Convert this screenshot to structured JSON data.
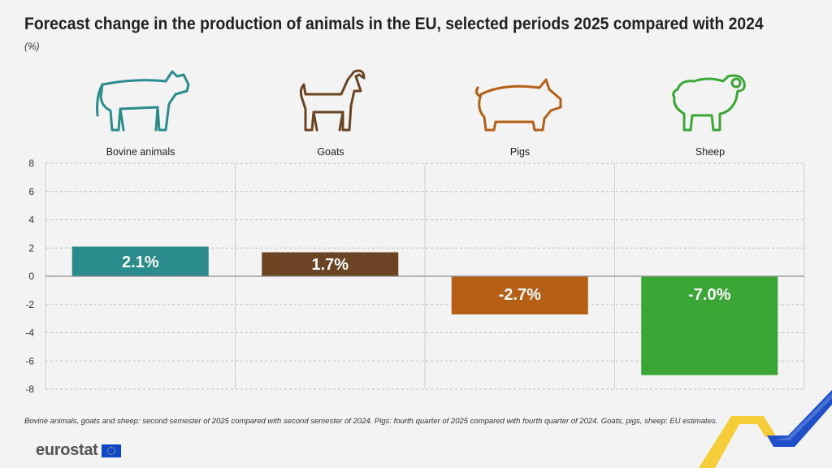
{
  "header": {
    "title": "Forecast change in the production of animals in the EU, selected periods 2025 compared with 2024",
    "unit": "(%)"
  },
  "icons": [
    "cow-icon",
    "goat-icon",
    "pig-icon",
    "sheep-icon"
  ],
  "chart_data": {
    "type": "bar",
    "categories": [
      "Bovine animals",
      "Goats",
      "Pigs",
      "Sheep"
    ],
    "values": [
      2.1,
      1.7,
      -2.7,
      -7.0
    ],
    "data_labels": [
      "2.1%",
      "1.7%",
      "-2.7%",
      "-7.0%"
    ],
    "colors": [
      "#2a8c8c",
      "#6b4423",
      "#b55f15",
      "#3aa635"
    ],
    "ylim": [
      -8,
      8
    ],
    "yticks": [
      8,
      6,
      4,
      2,
      0,
      -2,
      -4,
      -6,
      -8
    ],
    "grid": true,
    "xlabel": "",
    "ylabel": ""
  },
  "footnote": "Bovine animals, goats and sheep: second semester of 2025 compared with second semester of 2024. Pigs: fourth quarter of 2025 compared with fourth quarter of 2024. Goats, pigs, sheep: EU estimates.",
  "branding": {
    "logo_text": "eurostat"
  }
}
